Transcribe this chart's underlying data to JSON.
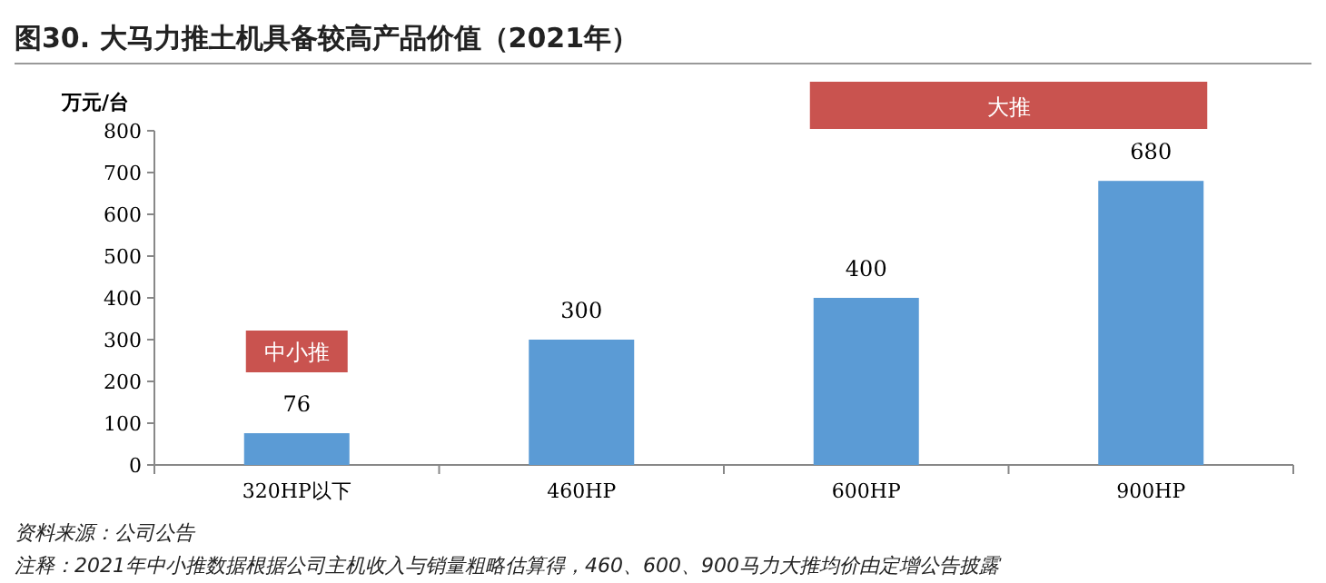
{
  "chart_data": {
    "type": "bar",
    "title": "图30. 大马力推土机具备较高产品价值（2021年）",
    "ylabel": "万元/台",
    "categories": [
      "320HP以下",
      "460HP",
      "600HP",
      "900HP"
    ],
    "values": [
      76,
      300,
      400,
      680
    ],
    "color": "#5b9bd5",
    "data_labels": true,
    "ylim": [
      0,
      800
    ],
    "yticks": [
      0,
      100,
      200,
      300,
      400,
      500,
      600,
      700,
      800
    ],
    "grid": false,
    "annotations": [
      "中小推",
      "大推",
      "资料来源：公司公告",
      "注释：2021年中小推数据根据公司主机收入与销量粗略估算得，460、600、900马力大推均价由定增公告披露"
    ]
  }
}
